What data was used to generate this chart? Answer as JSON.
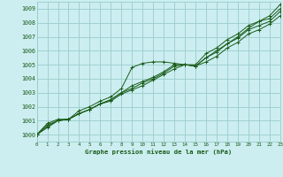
{
  "title": "Graphe pression niveau de la mer (hPa)",
  "bg_color": "#cceef0",
  "grid_color": "#99cccc",
  "line_color": "#1a5c1a",
  "xlim": [
    0,
    23
  ],
  "ylim": [
    999.5,
    1009.5
  ],
  "yticks": [
    1000,
    1001,
    1002,
    1003,
    1004,
    1005,
    1006,
    1007,
    1008,
    1009
  ],
  "xticks": [
    0,
    1,
    2,
    3,
    4,
    5,
    6,
    7,
    8,
    9,
    10,
    11,
    12,
    13,
    14,
    15,
    16,
    17,
    18,
    19,
    20,
    21,
    22,
    23
  ],
  "lines": [
    [
      1000.0,
      1000.8,
      1001.1,
      1001.1,
      1001.7,
      1002.0,
      1002.4,
      1002.7,
      1003.3,
      1004.8,
      1005.1,
      1005.2,
      1005.2,
      1005.1,
      1005.0,
      1004.9,
      1005.5,
      1006.0,
      1006.5,
      1007.0,
      1007.6,
      1008.1,
      1008.5,
      1009.3
    ],
    [
      1000.0,
      1000.7,
      1001.0,
      1001.1,
      1001.5,
      1001.8,
      1002.2,
      1002.5,
      1003.0,
      1003.5,
      1003.8,
      1004.1,
      1004.5,
      1005.0,
      1005.0,
      1005.0,
      1005.8,
      1006.2,
      1006.8,
      1007.2,
      1007.8,
      1008.1,
      1008.3,
      1009.0
    ],
    [
      1000.0,
      1000.6,
      1001.0,
      1001.1,
      1001.5,
      1001.8,
      1002.2,
      1002.5,
      1003.0,
      1003.3,
      1003.7,
      1004.0,
      1004.4,
      1004.9,
      1005.0,
      1004.9,
      1005.5,
      1005.9,
      1006.5,
      1006.9,
      1007.5,
      1007.8,
      1008.1,
      1008.8
    ],
    [
      1000.0,
      1000.5,
      1001.0,
      1001.1,
      1001.5,
      1001.8,
      1002.2,
      1002.4,
      1002.9,
      1003.2,
      1003.5,
      1003.9,
      1004.3,
      1004.7,
      1005.0,
      1004.9,
      1005.2,
      1005.6,
      1006.2,
      1006.6,
      1007.2,
      1007.5,
      1007.9,
      1008.5
    ]
  ]
}
